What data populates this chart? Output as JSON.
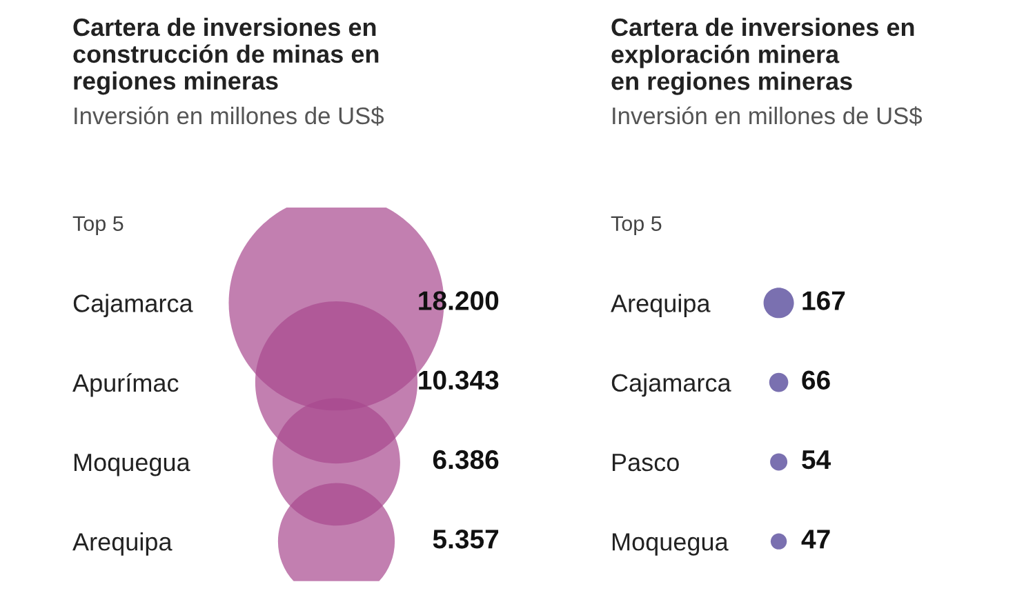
{
  "chart_data": [
    {
      "type": "other",
      "title": "Cartera de inversiones en\nconstrucción de minas en\nregiones mineras",
      "subtitle": "Inversión en millones de US$",
      "annotations": [
        "Top 5"
      ],
      "categories": [
        "Cajamarca",
        "Apurímac",
        "Moquegua",
        "Arequipa"
      ],
      "values": [
        18200,
        10343,
        6386,
        5357
      ],
      "value_labels": [
        "18.200",
        "10.343",
        "6.386",
        "5.357"
      ],
      "color": "#a8488f"
    },
    {
      "type": "other",
      "title": "Cartera de inversiones en\nexploración minera\nen regiones mineras",
      "subtitle": "Inversión en millones de US$",
      "annotations": [
        "Top 5"
      ],
      "categories": [
        "Arequipa",
        "Cajamarca",
        "Pasco",
        "Moquegua"
      ],
      "values": [
        167,
        66,
        54,
        47
      ],
      "value_labels": [
        "167",
        "66",
        "54",
        "47"
      ],
      "color": "#7a70b0"
    }
  ]
}
